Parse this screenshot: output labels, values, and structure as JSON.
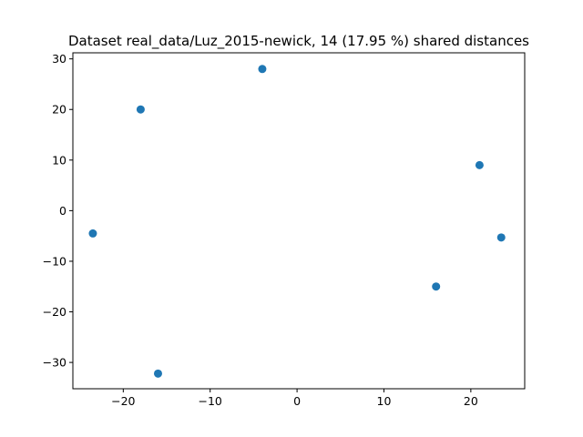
{
  "chart_data": {
    "type": "scatter",
    "title": "Dataset real_data/Luz_2015-newick, 14 (17.95 %) shared distances",
    "xlabel": "",
    "ylabel": "",
    "xlim": [
      -25.8,
      26.2
    ],
    "ylim": [
      -35.2,
      31.2
    ],
    "xticks": [
      -20,
      -10,
      0,
      10,
      20
    ],
    "yticks": [
      -30,
      -20,
      -10,
      0,
      10,
      20,
      30
    ],
    "xtick_labels": [
      "−20",
      "−10",
      "0",
      "10",
      "20"
    ],
    "ytick_labels": [
      "−30",
      "−20",
      "−10",
      "0",
      "10",
      "20",
      "30"
    ],
    "grid": false,
    "legend": "none",
    "series": [
      {
        "color": "#1f77b4",
        "points": [
          {
            "x": -4.0,
            "y": 28.0
          },
          {
            "x": -18.0,
            "y": 20.0
          },
          {
            "x": 21.0,
            "y": 9.0
          },
          {
            "x": -23.5,
            "y": -4.5
          },
          {
            "x": 23.5,
            "y": -5.3
          },
          {
            "x": 16.0,
            "y": -15.0
          },
          {
            "x": -16.0,
            "y": -32.2
          }
        ]
      }
    ]
  }
}
